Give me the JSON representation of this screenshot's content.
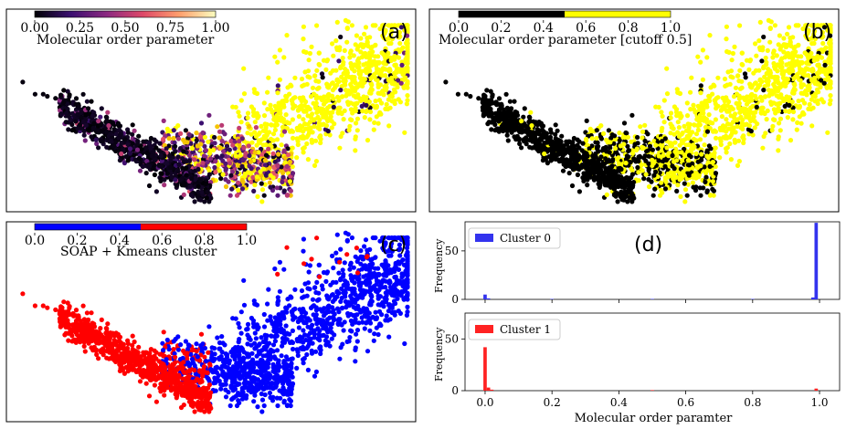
{
  "chart_data": [
    {
      "type": "scatter",
      "panel_label": "(a)",
      "colorbar_label": "Molecular order parameter",
      "colorbar_ticks": [
        "0.00",
        "0.25",
        "0.50",
        "0.75",
        "1.00"
      ],
      "colormap": [
        "#000004",
        "#3b0f70",
        "#8c2981",
        "#de4968",
        "#fe9f6d",
        "#fcfdbf"
      ],
      "point_style": "continuous",
      "axes_visible": false
    },
    {
      "type": "scatter",
      "panel_label": "(b)",
      "colorbar_label": "Molecular order parameter [cutoff 0.5]",
      "colorbar_ticks": [
        "0.0",
        "0.2",
        "0.4",
        "0.6",
        "0.8",
        "1.0"
      ],
      "colors": [
        "#000000",
        "#ffff00"
      ],
      "cutoff": 0.5,
      "axes_visible": false
    },
    {
      "type": "scatter",
      "panel_label": "(c)",
      "colorbar_label": "SOAP + Kmeans cluster",
      "colorbar_ticks": [
        "0.0",
        "0.2",
        "0.4",
        "0.6",
        "0.8",
        "1.0"
      ],
      "colors": [
        "#0000ff",
        "#ff0000"
      ],
      "cutoff": 0.5,
      "axes_visible": false
    },
    {
      "type": "bar",
      "panel_label": "(d)",
      "xlabel": "Molecular order paramter",
      "x_ticks": [
        "0.0",
        "0.2",
        "0.4",
        "0.6",
        "0.8",
        "1.0"
      ],
      "xlim": [
        -0.06,
        1.06
      ],
      "subplots": [
        {
          "legend": "Cluster 0",
          "color": "#3333ee",
          "ylabel": "Frequency",
          "y_ticks": [
            "0",
            "50"
          ],
          "ylim": [
            0,
            80
          ],
          "bins": [
            {
              "x": 0.0,
              "value": 5
            },
            {
              "x": 0.01,
              "value": 1
            },
            {
              "x": 0.2,
              "value": 0.5
            },
            {
              "x": 0.5,
              "value": 0.5
            },
            {
              "x": 0.8,
              "value": 0.5
            },
            {
              "x": 0.98,
              "value": 2
            },
            {
              "x": 0.99,
              "value": 79
            }
          ]
        },
        {
          "legend": "Cluster 1",
          "color": "#ff2222",
          "ylabel": "Frequency",
          "y_ticks": [
            "0",
            "50"
          ],
          "ylim": [
            0,
            75
          ],
          "bins": [
            {
              "x": 0.0,
              "value": 42
            },
            {
              "x": 0.01,
              "value": 3
            },
            {
              "x": 0.02,
              "value": 1
            },
            {
              "x": 0.5,
              "value": 0.5
            },
            {
              "x": 0.99,
              "value": 2
            }
          ]
        }
      ]
    }
  ]
}
